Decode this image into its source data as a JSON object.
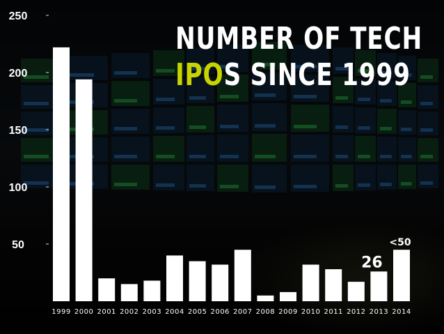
{
  "title": {
    "part1": "NUMBER OF TECH",
    "highlight": "IPO",
    "part2": "S SINCE 1999"
  },
  "colors": {
    "highlight": "#c8d400",
    "bars": "#ffffff",
    "text": "#ffffff"
  },
  "chart_data": {
    "type": "bar",
    "title": "NUMBER OF TECH IPOs SINCE 1999",
    "xlabel": "",
    "ylabel": "",
    "ylim": [
      0,
      250
    ],
    "yticks": [
      50,
      100,
      150,
      200,
      250
    ],
    "grid": false,
    "legend": "none",
    "categories": [
      "1999",
      "2000",
      "2001",
      "2002",
      "2003",
      "2004",
      "2005",
      "2006",
      "2007",
      "2008",
      "2009",
      "2010",
      "2011",
      "2012",
      "2013",
      "2014"
    ],
    "values": [
      222,
      194,
      20,
      15,
      18,
      40,
      35,
      32,
      45,
      5,
      8,
      32,
      28,
      17,
      26,
      45
    ],
    "data_labels": [
      {
        "category": "2013",
        "text": "26"
      },
      {
        "category": "2014",
        "text": "<50"
      }
    ]
  }
}
